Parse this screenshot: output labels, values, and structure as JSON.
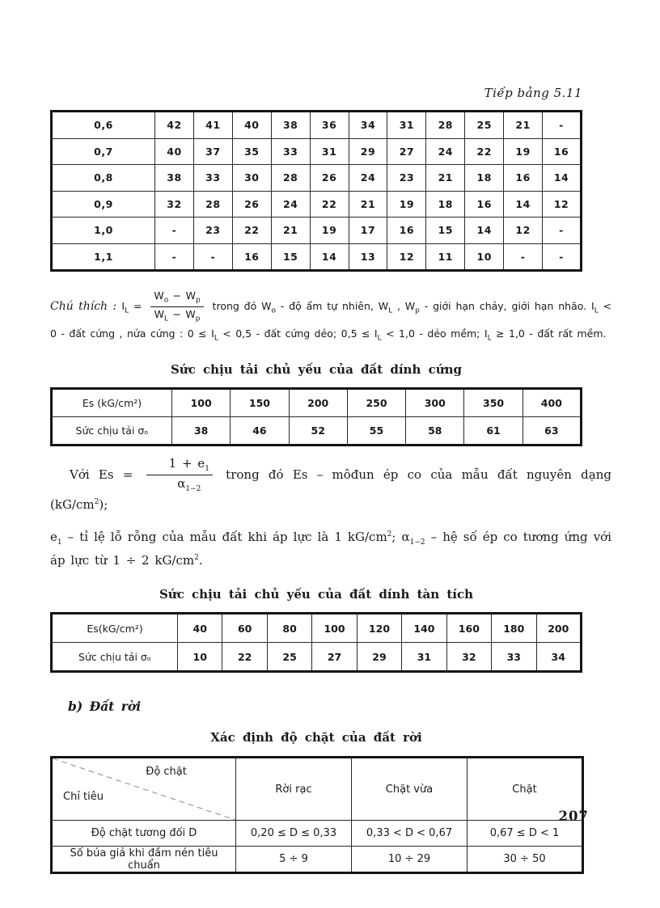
{
  "header": {
    "continuation_note": "Tiếp bảng 5.11"
  },
  "table_il": {
    "rows": [
      [
        "0,6",
        "42",
        "41",
        "40",
        "38",
        "36",
        "34",
        "31",
        "28",
        "25",
        "21",
        "-"
      ],
      [
        "0,7",
        "40",
        "37",
        "35",
        "33",
        "31",
        "29",
        "27",
        "24",
        "22",
        "19",
        "16"
      ],
      [
        "0,8",
        "38",
        "33",
        "30",
        "28",
        "26",
        "24",
        "23",
        "21",
        "18",
        "16",
        "14"
      ],
      [
        "0,9",
        "32",
        "28",
        "26",
        "24",
        "22",
        "21",
        "19",
        "18",
        "16",
        "14",
        "12"
      ],
      [
        "1,0",
        "-",
        "23",
        "22",
        "21",
        "19",
        "17",
        "16",
        "15",
        "14",
        "12",
        "-"
      ],
      [
        "1,1",
        "-",
        "-",
        "16",
        "15",
        "14",
        "13",
        "12",
        "11",
        "10",
        "-",
        "-"
      ]
    ]
  },
  "note": {
    "tokens": [
      {
        "t": "i",
        "v": "Chú thích :  "
      },
      {
        "t": "txt",
        "v": "I"
      },
      {
        "t": "sub",
        "v": "L"
      },
      {
        "t": "txt",
        "v": " = "
      },
      {
        "t": "frac",
        "num": [
          {
            "t": "txt",
            "v": "W"
          },
          {
            "t": "sub",
            "v": "o"
          },
          {
            "t": "txt",
            "v": " − W"
          },
          {
            "t": "sub",
            "v": "p"
          }
        ],
        "den": [
          {
            "t": "txt",
            "v": "W"
          },
          {
            "t": "sub",
            "v": "L"
          },
          {
            "t": "txt",
            "v": " − W"
          },
          {
            "t": "sub",
            "v": "p"
          }
        ]
      },
      {
        "t": "txt",
        "v": " trong đó W"
      },
      {
        "t": "sub",
        "v": "o"
      },
      {
        "t": "txt",
        "v": " - độ ẩm tự nhiên, W"
      },
      {
        "t": "sub",
        "v": "L"
      },
      {
        "t": "txt",
        "v": " , W"
      },
      {
        "t": "sub",
        "v": "p"
      },
      {
        "t": "txt",
        "v": " - giới hạn chảy, giới hạn nhão. I"
      },
      {
        "t": "sub",
        "v": "L"
      },
      {
        "t": "txt",
        "v": " < 0 - đất cứng , nửa cứng : 0 ≤ I"
      },
      {
        "t": "sub",
        "v": "L"
      },
      {
        "t": "txt",
        "v": " < 0,5 - đất cứng dẻo; 0,5 ≤ I"
      },
      {
        "t": "sub",
        "v": "L"
      },
      {
        "t": "txt",
        "v": " < 1,0 - dẻo mềm; I"
      },
      {
        "t": "sub",
        "v": "L"
      },
      {
        "t": "txt",
        "v": " ≥ 1,0 - đất rất mềm."
      }
    ]
  },
  "section_cung": {
    "title": "Sức chịu tải chủ yếu của đất dính cứng",
    "table": {
      "rows": [
        [
          "Es (kG/cm²)",
          "100",
          "150",
          "200",
          "250",
          "300",
          "350",
          "400"
        ],
        [
          "Sức chịu tải σₒ",
          "38",
          "46",
          "52",
          "55",
          "58",
          "61",
          "63"
        ]
      ]
    }
  },
  "es_paragraph": {
    "p1": [
      {
        "t": "txt",
        "v": "Với Es = "
      },
      {
        "t": "frac",
        "num": [
          {
            "t": "txt",
            "v": "1 + e"
          },
          {
            "t": "sub",
            "v": "1"
          }
        ],
        "den": [
          {
            "t": "txt",
            "v": "α"
          },
          {
            "t": "sub",
            "v": "1−2"
          }
        ]
      },
      {
        "t": "txt",
        "v": " trong đó Es – môđun ép co của mẫu đất nguyên dạng (kG/cm"
      },
      {
        "t": "sup",
        "v": "2"
      },
      {
        "t": "txt",
        "v": ");"
      }
    ],
    "p2": [
      {
        "t": "txt",
        "v": "e"
      },
      {
        "t": "sub",
        "v": "1"
      },
      {
        "t": "txt",
        "v": " – tỉ lệ lỗ rỗng của mẫu đất khi áp lực là 1 kG/cm"
      },
      {
        "t": "sup",
        "v": "2"
      },
      {
        "t": "txt",
        "v": "; α"
      },
      {
        "t": "sub",
        "v": "1−2"
      },
      {
        "t": "txt",
        "v": " – hệ số ép co tương ứng với áp lực từ 1 ÷ 2 kG/cm"
      },
      {
        "t": "sup",
        "v": "2"
      },
      {
        "t": "txt",
        "v": "."
      }
    ]
  },
  "section_tantich": {
    "title": "Sức chịu tải chủ yếu của đất dính tàn tích",
    "table": {
      "rows": [
        [
          "Es(kG/cm²)",
          "40",
          "60",
          "80",
          "100",
          "120",
          "140",
          "160",
          "180",
          "200"
        ],
        [
          "Sức chịu tải σₒ",
          "10",
          "22",
          "25",
          "27",
          "29",
          "31",
          "32",
          "33",
          "34"
        ]
      ]
    }
  },
  "section_datroi": {
    "heading": "b) Đất rời",
    "title": "Xác định độ chặt của đất rời",
    "table": {
      "corner": {
        "top": "Độ chặt",
        "bottom": "Chỉ tiêu"
      },
      "col_headers": [
        "Rời rạc",
        "Chặt vừa",
        "Chặt"
      ],
      "rows": [
        [
          "Độ chặt tương đối D",
          "0,20 ≤ D ≤ 0,33",
          "0,33 < D < 0,67",
          "0,67 ≤ D < 1"
        ],
        [
          "Số búa giả khi đầm nén tiêu chuẩn",
          "5 ÷ 9",
          "10 ÷ 29",
          "30 ÷ 50"
        ]
      ]
    }
  },
  "footer": {
    "page_number": "207"
  }
}
